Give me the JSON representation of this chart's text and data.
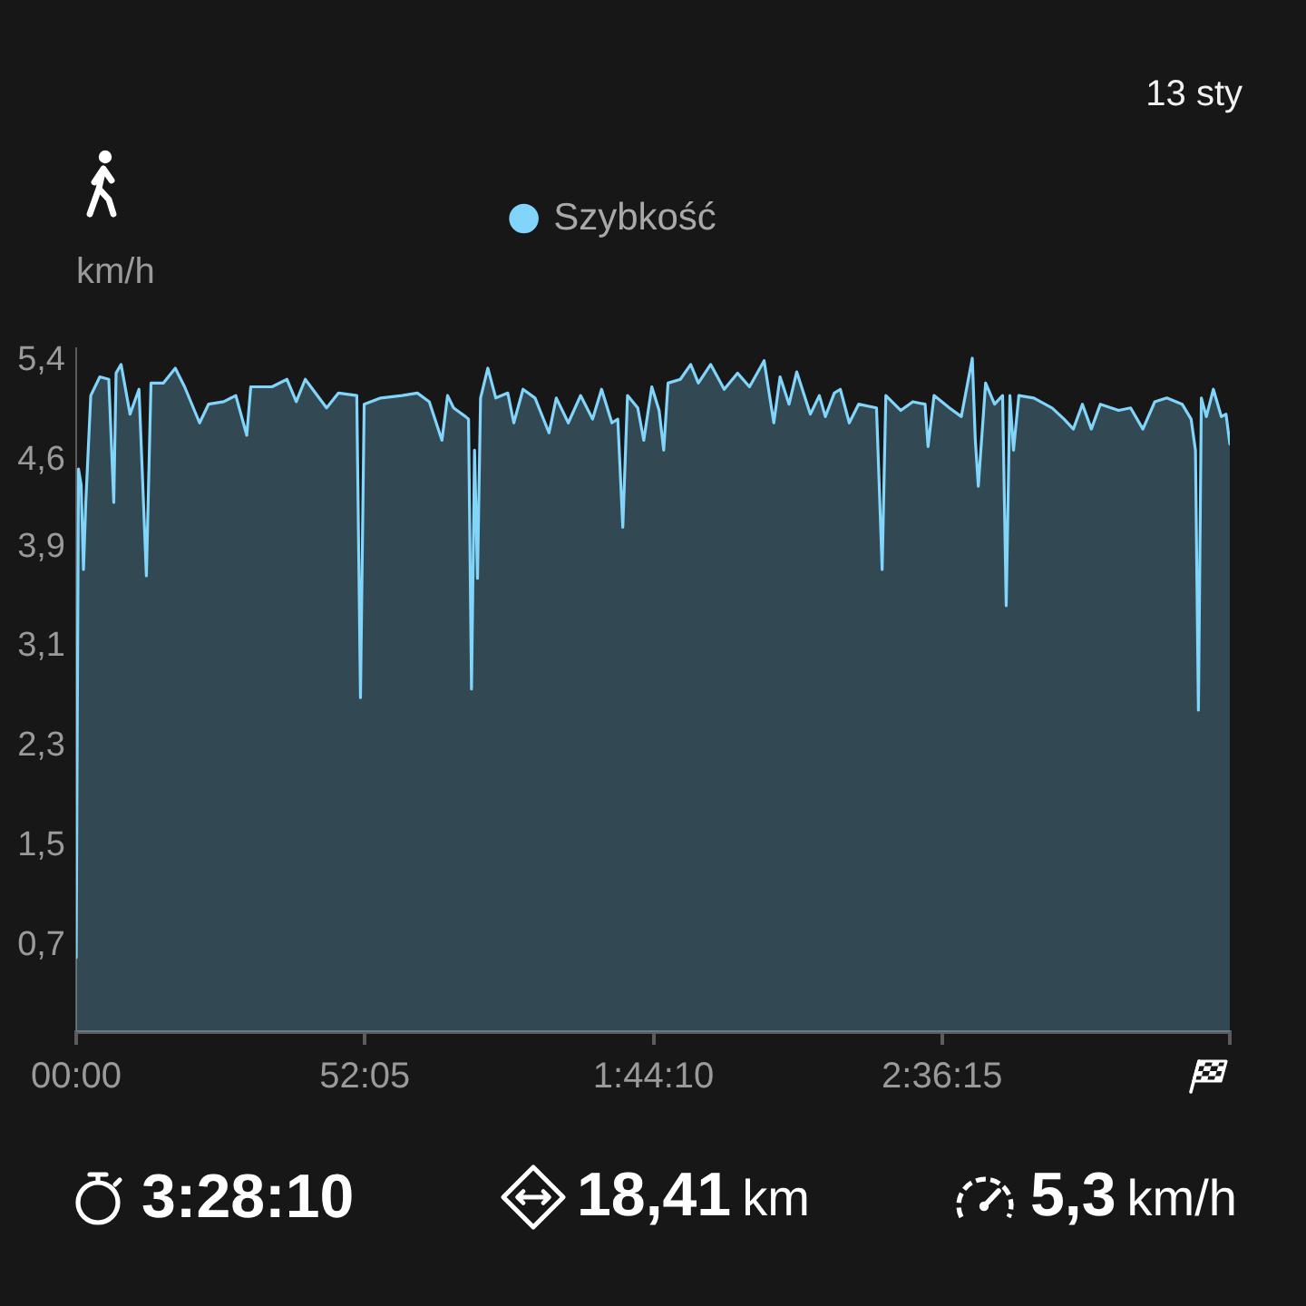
{
  "chart_data": {
    "type": "area",
    "ylabel": "km/h",
    "legend": "top",
    "marker": "none",
    "annotations": [
      "13 sty",
      "3:28:10",
      "18,41",
      "km",
      "5,3",
      "km/h"
    ],
    "xlim": [
      0,
      12490
    ],
    "xticks": [
      {
        "value": 0,
        "label": "00:00"
      },
      {
        "value": 3125,
        "label": "52:05"
      },
      {
        "value": 6250,
        "label": "1:44:10"
      },
      {
        "value": 9375,
        "label": "2:36:15"
      },
      {
        "value": 12490,
        "label": null
      }
    ],
    "ylim": [
      0,
      5.5
    ],
    "yticks": [
      {
        "value": 0.7,
        "label": "0,7"
      },
      {
        "value": 1.5,
        "label": "1,5"
      },
      {
        "value": 2.3,
        "label": "2,3"
      },
      {
        "value": 3.1,
        "label": "3,1"
      },
      {
        "value": 3.9,
        "label": "3,9"
      },
      {
        "value": 4.6,
        "label": "4,6"
      },
      {
        "value": 5.4,
        "label": "5,4"
      }
    ],
    "x": [
      0,
      25,
      54,
      79,
      104,
      158,
      256,
      353,
      407,
      432,
      486,
      583,
      680,
      760,
      810,
      943,
      1073,
      1174,
      1336,
      1433,
      1598,
      1728,
      1847,
      1890,
      2120,
      2282,
      2383,
      2480,
      2711,
      2840,
      3038,
      3078,
      3118,
      3298,
      3528,
      3694,
      3823,
      3960,
      4021,
      4086,
      4216,
      4248,
      4280,
      4313,
      4345,
      4378,
      4457,
      4543,
      4673,
      4738,
      4838,
      4968,
      5119,
      5198,
      5328,
      5461,
      5591,
      5688,
      5800,
      5864,
      5918,
      5969,
      6080,
      6145,
      6232,
      6311,
      6361,
      6408,
      6541,
      6653,
      6736,
      6869,
      7016,
      7160,
      7290,
      7448,
      7553,
      7621,
      7718,
      7801,
      7949,
      8046,
      8111,
      8208,
      8273,
      8370,
      8471,
      8665,
      8726,
      8766,
      8928,
      9058,
      9191,
      9223,
      9288,
      9454,
      9583,
      9702,
      9734,
      9767,
      9846,
      9943,
      10030,
      10069,
      10109,
      10148,
      10206,
      10368,
      10566,
      10696,
      10796,
      10894,
      10991,
      11088,
      11286,
      11416,
      11549,
      11678,
      11808,
      11974,
      12071,
      12118,
      12150,
      12182,
      12236,
      12312,
      12398,
      12449,
      12490
    ],
    "series": [
      {
        "name": "Szybkość",
        "color": "#81d4fa",
        "values": [
          0.6,
          4.53,
          4.4,
          3.72,
          4.26,
          5.12,
          5.27,
          5.25,
          4.26,
          5.3,
          5.37,
          4.97,
          5.17,
          3.67,
          5.22,
          5.22,
          5.34,
          5.19,
          4.9,
          5.05,
          5.07,
          5.12,
          4.8,
          5.19,
          5.19,
          5.25,
          5.07,
          5.25,
          5.02,
          5.14,
          5.12,
          2.69,
          5.05,
          5.1,
          5.12,
          5.14,
          5.07,
          4.76,
          5.12,
          5.02,
          4.95,
          4.93,
          2.76,
          4.68,
          3.65,
          5.1,
          5.34,
          5.1,
          5.14,
          4.9,
          5.17,
          5.1,
          4.82,
          5.1,
          4.9,
          5.12,
          4.93,
          5.17,
          4.9,
          4.93,
          4.06,
          5.12,
          5.02,
          4.76,
          5.19,
          5.0,
          4.68,
          5.22,
          5.25,
          5.37,
          5.22,
          5.37,
          5.17,
          5.3,
          5.19,
          5.4,
          4.9,
          5.27,
          5.05,
          5.31,
          4.97,
          5.12,
          4.95,
          5.14,
          5.17,
          4.9,
          5.05,
          5.02,
          3.72,
          5.12,
          5.0,
          5.07,
          5.05,
          4.71,
          5.12,
          5.02,
          4.95,
          5.42,
          4.77,
          4.39,
          5.22,
          5.05,
          5.12,
          3.43,
          5.12,
          4.68,
          5.12,
          5.1,
          5.02,
          4.93,
          4.85,
          5.05,
          4.85,
          5.05,
          5.0,
          5.02,
          4.85,
          5.07,
          5.1,
          5.05,
          4.93,
          4.68,
          2.59,
          5.1,
          4.95,
          5.17,
          4.95,
          4.97,
          4.73
        ]
      }
    ]
  }
}
